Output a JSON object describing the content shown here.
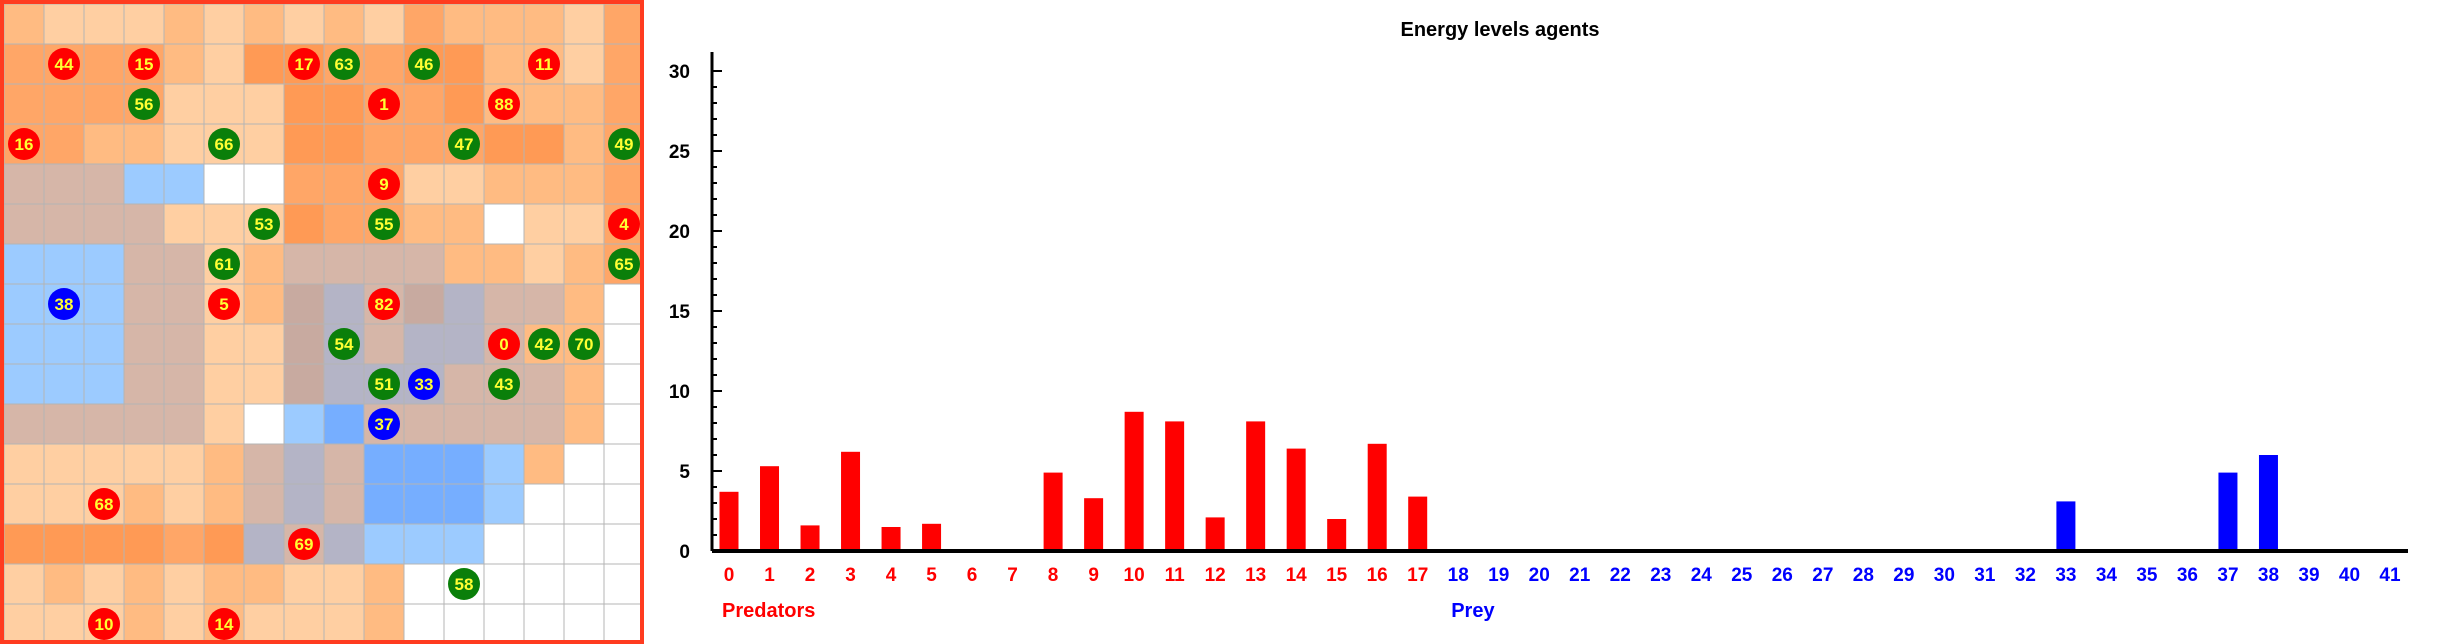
{
  "grid": {
    "rows": 16,
    "cols": 16,
    "border_color": "#ff3b1f",
    "line_color": "#b4b4b4",
    "palette": {
      "w": "#ffffff",
      "l": "#ffcfa2",
      "m": "#ffbb82",
      "o": "#ffa667",
      "d": "#ff9a55",
      "g": "#d6b6a8",
      "t": "#c8aaa0",
      "b": "#9ccbff",
      "B": "#76aeff",
      "c": "#b4b4c6"
    },
    "cells": [
      "mlllmlmlmlommmlo",
      "oooomlddooddmmlo",
      "oooolllddoodmmmo",
      "oommlllddoooddmo",
      "gggbbwwooollmmmo",
      "ggggllldoommwllo",
      "bbbgglmggggmmlmo",
      "bbbgglmtcgtcggmw",
      "bbbgglltcgccgmmw",
      "bbbgglltcccgggmw",
      "ggggglwbBgggggmw",
      "lllllmgcgBBBbmww",
      "lllmlmgcgBBBbwww",
      "ddddodcgcbbbwwww",
      "lmlmlmmllmwwwwww",
      "lllmlmlllmwwwwww"
    ],
    "agent_colors": {
      "predator": "#ff0000",
      "prey": "#0000ff",
      "food": "#0a7f0a"
    },
    "agents": [
      {
        "label": "44",
        "kind": "predator",
        "col": 1,
        "row": 1
      },
      {
        "label": "15",
        "kind": "predator",
        "col": 3,
        "row": 1
      },
      {
        "label": "17",
        "kind": "predator",
        "col": 7,
        "row": 1
      },
      {
        "label": "63",
        "kind": "food",
        "col": 8,
        "row": 1
      },
      {
        "label": "46",
        "kind": "food",
        "col": 10,
        "row": 1
      },
      {
        "label": "11",
        "kind": "predator",
        "col": 13,
        "row": 1
      },
      {
        "label": "56",
        "kind": "food",
        "col": 3,
        "row": 2
      },
      {
        "label": "1",
        "kind": "predator",
        "col": 9,
        "row": 2
      },
      {
        "label": "88",
        "kind": "predator",
        "col": 12,
        "row": 2
      },
      {
        "label": "16",
        "kind": "predator",
        "col": 0,
        "row": 3
      },
      {
        "label": "66",
        "kind": "food",
        "col": 5,
        "row": 3
      },
      {
        "label": "47",
        "kind": "food",
        "col": 11,
        "row": 3
      },
      {
        "label": "49",
        "kind": "food",
        "col": 15,
        "row": 3
      },
      {
        "label": "9",
        "kind": "predator",
        "col": 9,
        "row": 4
      },
      {
        "label": "53",
        "kind": "food",
        "col": 6,
        "row": 5
      },
      {
        "label": "55",
        "kind": "food",
        "col": 9,
        "row": 5
      },
      {
        "label": "4",
        "kind": "predator",
        "col": 15,
        "row": 5
      },
      {
        "label": "61",
        "kind": "food",
        "col": 5,
        "row": 6
      },
      {
        "label": "65",
        "kind": "food",
        "col": 15,
        "row": 6
      },
      {
        "label": "38",
        "kind": "prey",
        "col": 1,
        "row": 7
      },
      {
        "label": "5",
        "kind": "predator",
        "col": 5,
        "row": 7
      },
      {
        "label": "82",
        "kind": "predator",
        "col": 9,
        "row": 7
      },
      {
        "label": "54",
        "kind": "food",
        "col": 8,
        "row": 8
      },
      {
        "label": "0",
        "kind": "predator",
        "col": 12,
        "row": 8
      },
      {
        "label": "42",
        "kind": "food",
        "col": 13,
        "row": 8
      },
      {
        "label": "70",
        "kind": "food",
        "col": 14,
        "row": 8
      },
      {
        "label": "51",
        "kind": "food",
        "col": 9,
        "row": 9
      },
      {
        "label": "33",
        "kind": "prey",
        "col": 10,
        "row": 9
      },
      {
        "label": "43",
        "kind": "food",
        "col": 12,
        "row": 9
      },
      {
        "label": "37",
        "kind": "prey",
        "col": 9,
        "row": 10
      },
      {
        "label": "68",
        "kind": "predator",
        "col": 2,
        "row": 12
      },
      {
        "label": "69",
        "kind": "predator",
        "col": 7,
        "row": 13
      },
      {
        "label": "58",
        "kind": "food",
        "col": 11,
        "row": 14
      },
      {
        "label": "10",
        "kind": "predator",
        "col": 2,
        "row": 15
      },
      {
        "label": "14",
        "kind": "predator",
        "col": 5,
        "row": 15
      }
    ]
  },
  "chart_data": {
    "type": "bar",
    "title": "Energy levels agents",
    "ylim": [
      0,
      31
    ],
    "yticks": [
      0,
      5,
      10,
      15,
      20,
      25,
      30
    ],
    "categories": [
      "0",
      "1",
      "2",
      "3",
      "4",
      "5",
      "6",
      "7",
      "8",
      "9",
      "10",
      "11",
      "12",
      "13",
      "14",
      "15",
      "16",
      "17",
      "18",
      "19",
      "20",
      "21",
      "22",
      "23",
      "24",
      "25",
      "26",
      "27",
      "28",
      "29",
      "30",
      "31",
      "32",
      "33",
      "34",
      "35",
      "36",
      "37",
      "38",
      "39",
      "40",
      "41"
    ],
    "groups": [
      {
        "name": "Predators",
        "color": "#ff0000",
        "start": 0,
        "end": 17
      },
      {
        "name": "Prey",
        "color": "#0000ff",
        "start": 18,
        "end": 41
      }
    ],
    "values": [
      3.7,
      5.3,
      1.6,
      6.2,
      1.5,
      1.7,
      0,
      0,
      4.9,
      3.3,
      8.7,
      8.1,
      2.1,
      8.1,
      6.4,
      2.0,
      6.7,
      3.4,
      0,
      0,
      0,
      0,
      0,
      0,
      0,
      0,
      0,
      0,
      0,
      0,
      0,
      0,
      0,
      3.1,
      0,
      0,
      0,
      4.9,
      6.0,
      0,
      0,
      0
    ]
  }
}
